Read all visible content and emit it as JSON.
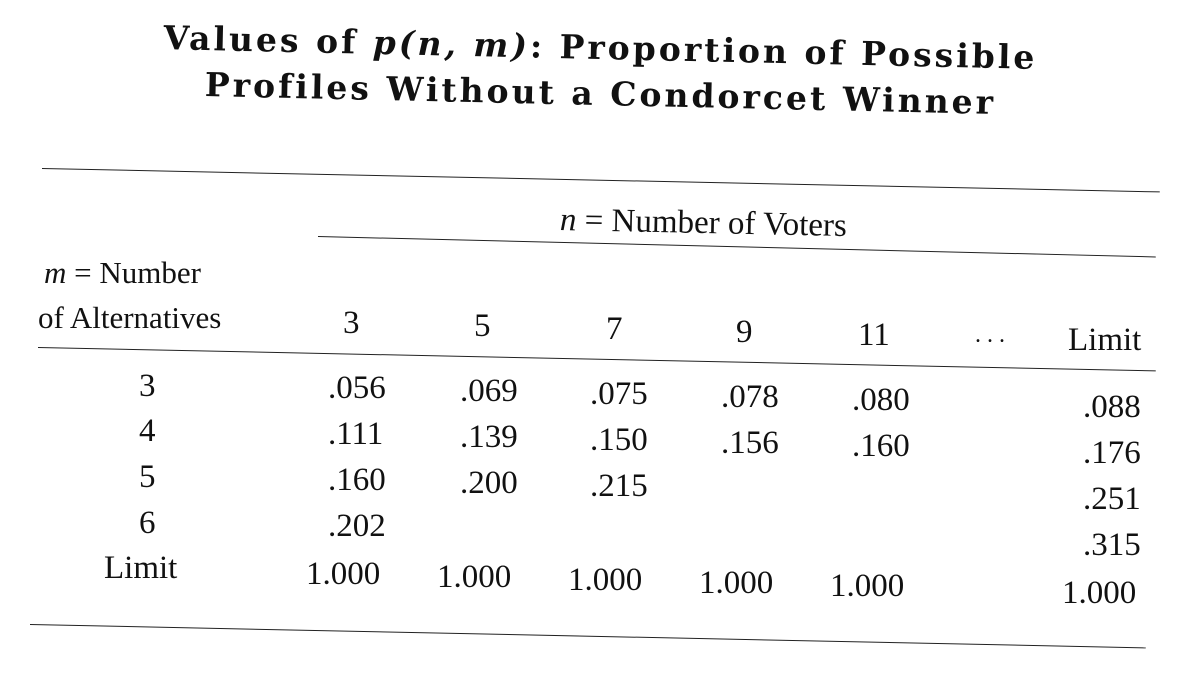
{
  "title": {
    "line1_prefix": "Values of ",
    "line1_func": "p(n, m)",
    "line1_suffix": ": Proportion of Possible",
    "line2": "Profiles Without a Condorcet Winner"
  },
  "table": {
    "column_group_var": "n",
    "column_group_label": "= Number of Voters",
    "stub_var": "m",
    "stub_label_line1": "= Number",
    "stub_label_line2": "of Alternatives",
    "column_headers": [
      "3",
      "5",
      "7",
      "9",
      "11",
      ". . .",
      "Limit"
    ],
    "rows": [
      {
        "label": "3",
        "values": [
          ".056",
          ".069",
          ".075",
          ".078",
          ".080",
          ".088"
        ]
      },
      {
        "label": "4",
        "values": [
          ".111",
          ".139",
          ".150",
          ".156",
          ".160",
          ".176"
        ]
      },
      {
        "label": "5",
        "values": [
          ".160",
          ".200",
          ".215",
          "",
          "",
          ".251"
        ]
      },
      {
        "label": "6",
        "values": [
          ".202",
          "",
          "",
          "",
          "",
          ".315"
        ]
      },
      {
        "label": "Limit",
        "values": [
          "1.000",
          "1.000",
          "1.000",
          "1.000",
          "1.000",
          "1.000"
        ]
      }
    ]
  }
}
